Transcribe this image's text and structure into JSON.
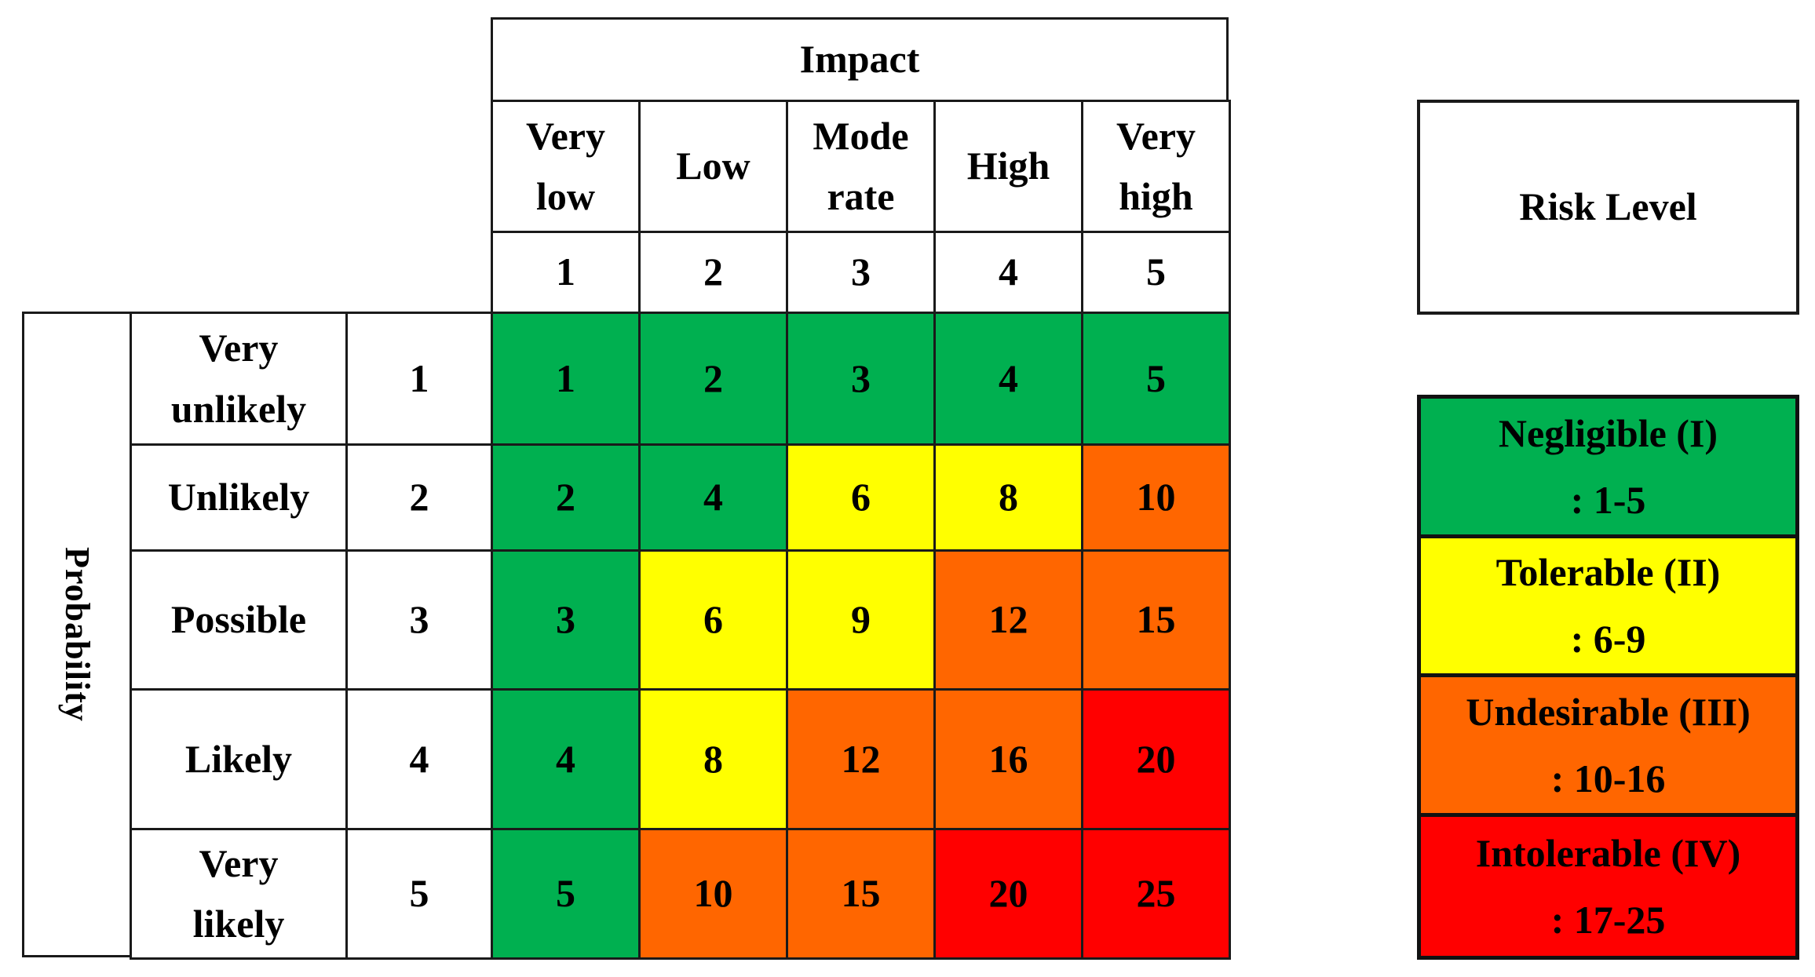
{
  "impact": {
    "title": "Impact",
    "levels": [
      {
        "label": "Very\nlow",
        "score": "1"
      },
      {
        "label": "Low",
        "score": "2"
      },
      {
        "label": "Mode\nrate",
        "score": "3"
      },
      {
        "label": "High",
        "score": "4"
      },
      {
        "label": "Very\nhigh",
        "score": "5"
      }
    ]
  },
  "probability": {
    "title": "Probability",
    "levels": [
      {
        "label": "Very\nunlikely",
        "score": "1"
      },
      {
        "label": "Unlikely",
        "score": "2"
      },
      {
        "label": "Possible",
        "score": "3"
      },
      {
        "label": "Likely",
        "score": "4"
      },
      {
        "label": "Very\nlikely",
        "score": "5"
      }
    ]
  },
  "matrix": [
    [
      "1",
      "2",
      "3",
      "4",
      "5"
    ],
    [
      "2",
      "4",
      "6",
      "8",
      "10"
    ],
    [
      "3",
      "6",
      "9",
      "12",
      "15"
    ],
    [
      "4",
      "8",
      "12",
      "16",
      "20"
    ],
    [
      "5",
      "10",
      "15",
      "20",
      "25"
    ]
  ],
  "cell_levels": [
    [
      0,
      0,
      0,
      0,
      0
    ],
    [
      0,
      0,
      1,
      1,
      2
    ],
    [
      0,
      1,
      1,
      2,
      2
    ],
    [
      0,
      1,
      2,
      2,
      3
    ],
    [
      0,
      2,
      2,
      3,
      3
    ]
  ],
  "legend": {
    "title": "Risk Level",
    "items": [
      {
        "name": "Negligible (I)",
        "range": ": 1-5",
        "color": "#00b050"
      },
      {
        "name": "Tolerable (II)",
        "range": ": 6-9",
        "color": "#ffff00"
      },
      {
        "name": "Undesirable (III)",
        "range": ": 10-16",
        "color": "#ff6600"
      },
      {
        "name": "Intolerable (IV)",
        "range": ": 17-25",
        "color": "#ff0000"
      }
    ]
  }
}
